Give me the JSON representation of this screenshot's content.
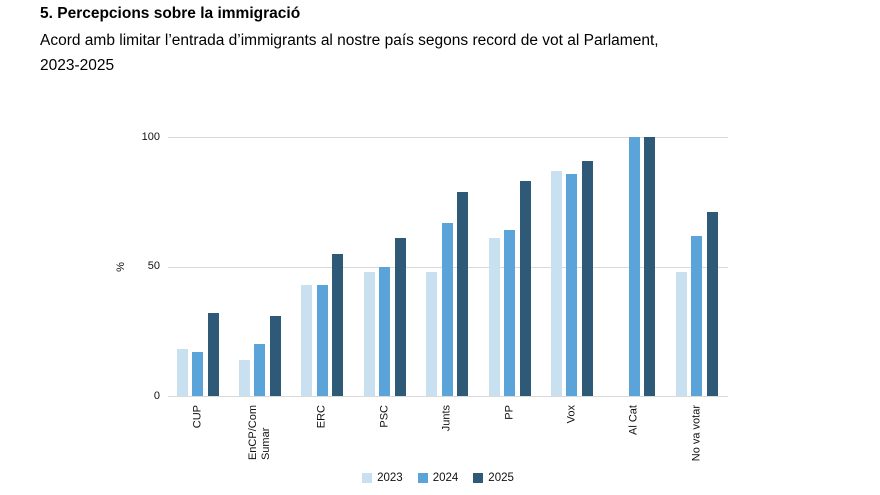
{
  "header": {
    "title": "5. Percepcions sobre la immigració",
    "subtitle_line1": "Acord amb limitar l’entrada d’immigrants al nostre país segons record de vot al Parlament,",
    "subtitle_line2": "2023-2025"
  },
  "chart_data": {
    "type": "bar",
    "categories": [
      "CUP",
      "EnCP/Com\nSumar",
      "ERC",
      "PSC",
      "Junts",
      "PP",
      "Vox",
      "Al Cat",
      "No va votar"
    ],
    "series": [
      {
        "name": "2023",
        "color": "#C9E0F0",
        "values": [
          18,
          14,
          43,
          48,
          48,
          61,
          87,
          null,
          48
        ]
      },
      {
        "name": "2024",
        "color": "#5BA4D9",
        "values": [
          17,
          20,
          43,
          50,
          67,
          64,
          86,
          100,
          62
        ]
      },
      {
        "name": "2025",
        "color": "#2E5A78",
        "values": [
          32,
          31,
          55,
          61,
          79,
          83,
          91,
          100,
          71
        ]
      }
    ],
    "title": "5. Percepcions sobre la immigració",
    "xlabel": "",
    "ylabel": "%",
    "yticks": [
      0,
      50,
      100
    ],
    "ylim": [
      0,
      100
    ],
    "grid": true,
    "legend_position": "bottom"
  }
}
